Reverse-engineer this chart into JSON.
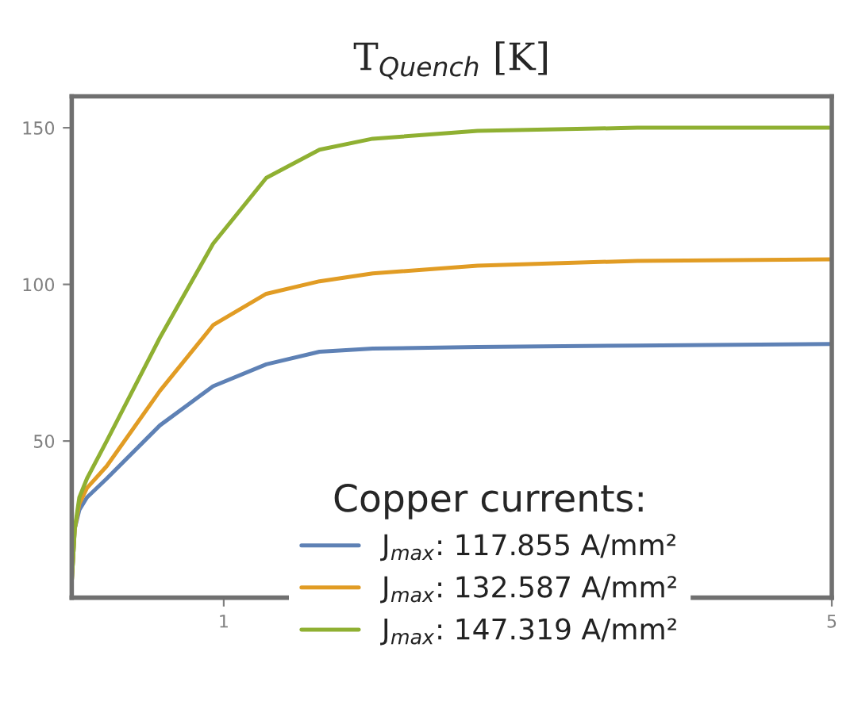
{
  "chart_data": {
    "type": "line",
    "title": "T$_{Quench}$ [K]",
    "legend_title": "Copper currents:",
    "xlim": [
      0,
      5
    ],
    "xticks": [
      1,
      5
    ],
    "ylim": [
      0,
      160
    ],
    "yticks": [
      50,
      100,
      150
    ],
    "grid": false,
    "legend": "bottom",
    "marker": "none",
    "line_style": "solid",
    "series": [
      {
        "name": "J$_{max}$: 117.855 A/mm²",
        "color": "#5e81b5",
        "x": [
          0,
          0.02,
          0.05,
          0.1,
          0.23,
          0.58,
          0.93,
          1.28,
          1.63,
          1.98,
          2.67,
          3.72,
          5
        ],
        "values": [
          5,
          22,
          28,
          32,
          38,
          55,
          67.5,
          74.5,
          78.5,
          79.5,
          80,
          80.5,
          81
        ]
      },
      {
        "name": "J$_{max}$: 132.587 A/mm²",
        "color": "#e19c24",
        "x": [
          0,
          0.02,
          0.05,
          0.1,
          0.23,
          0.58,
          0.93,
          1.28,
          1.63,
          1.98,
          2.67,
          3.72,
          5
        ],
        "values": [
          5,
          22,
          30,
          35,
          42,
          66,
          87,
          97,
          101,
          103.5,
          106,
          107.5,
          108
        ]
      },
      {
        "name": "J$_{max}$: 147.319 A/mm²",
        "color": "#8fb032",
        "x": [
          0,
          0.02,
          0.05,
          0.1,
          0.23,
          0.58,
          0.93,
          1.28,
          1.63,
          1.98,
          2.67,
          3.72,
          5
        ],
        "values": [
          5,
          22,
          32,
          38,
          50,
          83,
          113,
          134,
          143,
          146.5,
          149,
          150,
          150
        ]
      }
    ]
  }
}
